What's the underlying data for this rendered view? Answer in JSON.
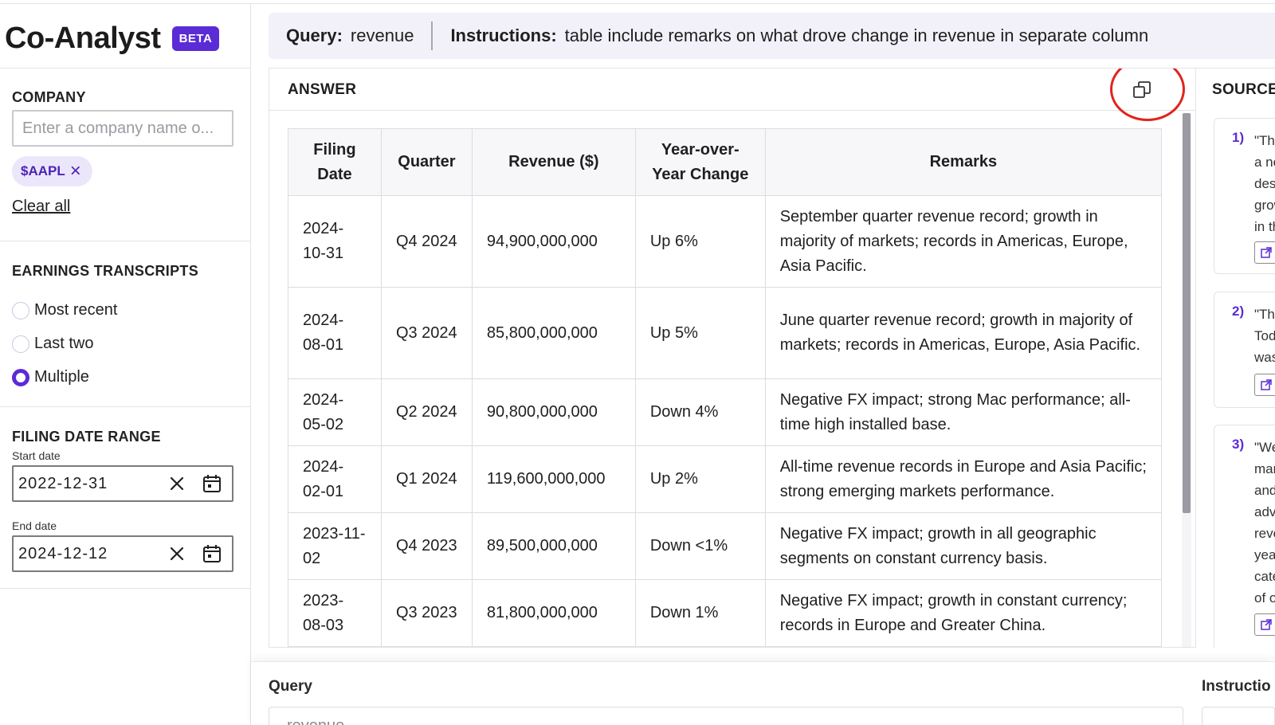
{
  "brand": {
    "title": "Co-Analyst",
    "badge": "BETA"
  },
  "company": {
    "label": "COMPANY",
    "placeholder": "Enter a company name o...",
    "chip": "$AAPL",
    "clear_all": "Clear all"
  },
  "earnings": {
    "label": "EARNINGS TRANSCRIPTS",
    "options": [
      {
        "label": "Most recent",
        "checked": false
      },
      {
        "label": "Last two",
        "checked": false
      },
      {
        "label": "Multiple",
        "checked": true
      }
    ]
  },
  "filing_range": {
    "label": "FILING DATE RANGE",
    "start_label": "Start date",
    "start_value": "2022-12-31",
    "end_label": "End date",
    "end_value": "2024-12-12"
  },
  "query_bar": {
    "query_label": "Query:",
    "query_value": "revenue",
    "instructions_label": "Instructions:",
    "instructions_value": "table include remarks on what drove change in revenue in separate column"
  },
  "answer": {
    "title": "ANSWER",
    "columns": [
      "Filing Date",
      "Quarter",
      "Revenue ($)",
      "Year-over-Year Change",
      "Remarks"
    ],
    "rows": [
      [
        "2024-10-31",
        "Q4 2024",
        "94,900,000,000",
        "Up 6%",
        "September quarter revenue record; growth in majority of markets; records in Americas, Europe, Asia Pacific."
      ],
      [
        "2024-08-01",
        "Q3 2024",
        "85,800,000,000",
        "Up 5%",
        "June quarter revenue record; growth in majority of markets; records in Americas, Europe, Asia Pacific."
      ],
      [
        "2024-05-02",
        "Q2 2024",
        "90,800,000,000",
        "Down 4%",
        "Negative FX impact; strong Mac performance; all-time high installed base."
      ],
      [
        "2024-02-01",
        "Q1 2024",
        "119,600,000,000",
        "Up 2%",
        "All-time revenue records in Europe and Asia Pacific; strong emerging markets performance."
      ],
      [
        "2023-11-02",
        "Q4 2023",
        "89,500,000,000",
        "Down <1%",
        "Negative FX impact; growth in all geographic segments on constant currency basis."
      ],
      [
        "2023-08-03",
        "Q3 2023",
        "81,800,000,000",
        "Down 1%",
        "Negative FX impact; growth in constant currency; records in Europe and Greater China."
      ]
    ]
  },
  "sources": {
    "title": "SOURCES",
    "items": [
      {
        "num": "1)",
        "lines": [
          "\"Th",
          "a ne",
          "des",
          "grow",
          "in th"
        ]
      },
      {
        "num": "2)",
        "lines": [
          "\"Th",
          "Tod",
          "was"
        ]
      },
      {
        "num": "3)",
        "lines": [
          "\"We",
          "mar",
          "and",
          "adv",
          "reve",
          "yea",
          "cate",
          "of o"
        ]
      }
    ]
  },
  "bottom": {
    "query_label": "Query",
    "query_value": "revenue",
    "instructions_label": "Instructio"
  },
  "icons": {
    "copy": "copy-icon",
    "clear": "close-icon",
    "calendar": "calendar-icon",
    "external": "external-link-icon"
  },
  "colors": {
    "accent": "#5b2bd6",
    "highlight": "#e0241b",
    "chip_bg": "#ece6fb"
  }
}
